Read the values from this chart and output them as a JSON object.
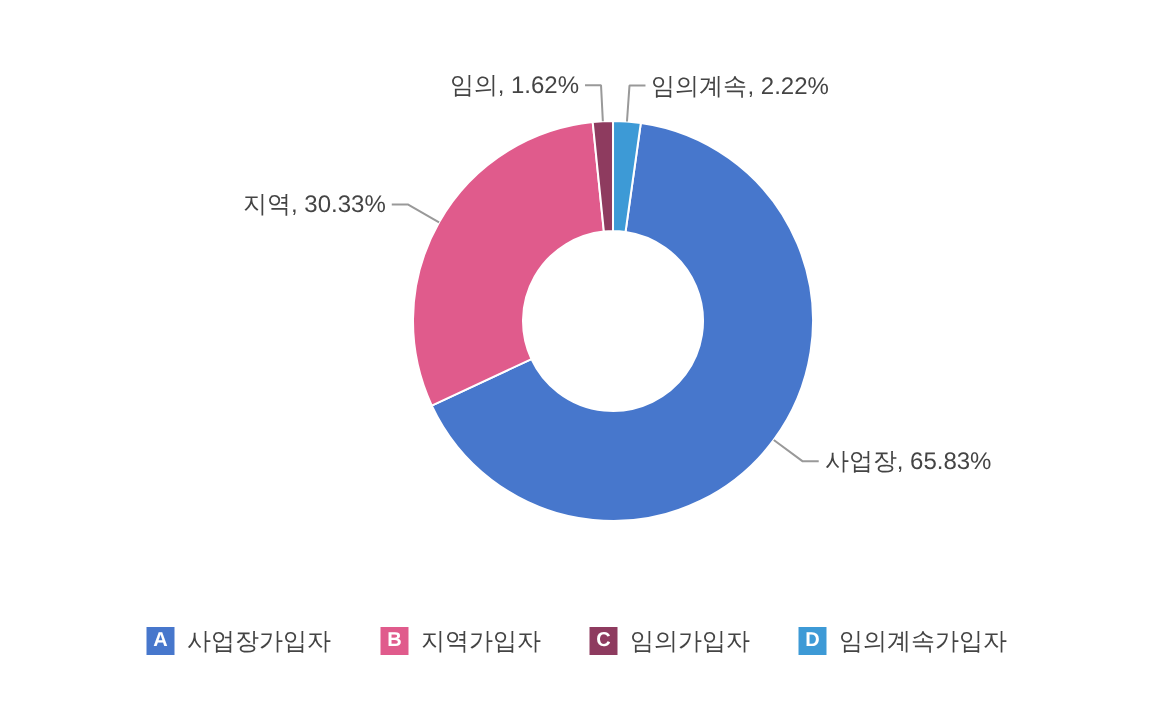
{
  "chart_data": {
    "type": "donut",
    "categories": [
      "사업장가입자",
      "지역가입자",
      "임의가입자",
      "임의계속가입자"
    ],
    "values": [
      65.83,
      30.33,
      1.62,
      2.22
    ],
    "colors": [
      "#4777cc",
      "#e05b8c",
      "#8e3b5f",
      "#3d9ad6"
    ],
    "value_labels": [
      "사업장, 65.83%",
      "지역, 30.33%",
      "임의, 1.62%",
      "임의계속, 2.22%"
    ],
    "annotations": [
      "A",
      "B",
      "C",
      "D"
    ],
    "legend": "bottom"
  }
}
